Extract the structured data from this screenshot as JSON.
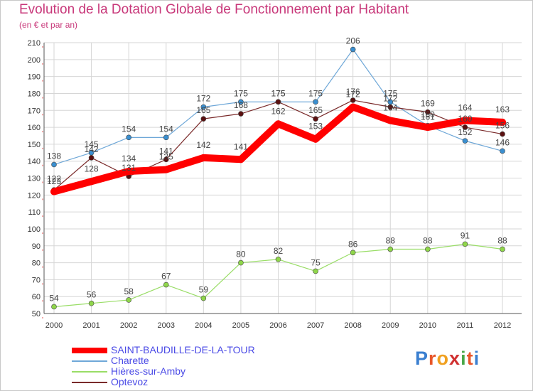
{
  "chart_data": {
    "type": "line",
    "title": "Evolution de la Dotation Globale de Fonctionnement par Habitant",
    "subtitle": "(en € et par an)",
    "x": [
      "2000",
      "2001",
      "2002",
      "2003",
      "2004",
      "2005",
      "2006",
      "2007",
      "2008",
      "2009",
      "2010",
      "2011",
      "2012"
    ],
    "ylim": [
      50,
      210
    ],
    "yticks": [
      50,
      60,
      70,
      80,
      90,
      100,
      110,
      120,
      130,
      140,
      150,
      160,
      170,
      180,
      190,
      200,
      210
    ],
    "grid": true,
    "legend_position": "bottom-left",
    "series": [
      {
        "name": "SAINT-BAUDILLE-DE-LA-TOUR",
        "color": "#ff0000",
        "values": [
          122,
          128,
          134,
          135,
          142,
          141,
          162,
          153,
          172,
          164,
          160,
          164,
          163
        ]
      },
      {
        "name": "Charette",
        "color": "#6fa8d8",
        "values": [
          138,
          145,
          154,
          154,
          172,
          175,
          175,
          175,
          206,
          175,
          161,
          152,
          146
        ]
      },
      {
        "name": "Hières-sur-Amby",
        "color": "#99dd66",
        "values": [
          54,
          56,
          58,
          67,
          59,
          80,
          82,
          75,
          86,
          88,
          88,
          91,
          88
        ]
      },
      {
        "name": "Optevoz",
        "color": "#7a2a2a",
        "values": [
          123,
          142,
          131,
          141,
          165,
          168,
          175,
          165,
          176,
          172,
          169,
          160,
          156
        ]
      }
    ]
  },
  "logo": {
    "letters": [
      "P",
      "r",
      "o",
      "x",
      "i",
      "t",
      "i"
    ]
  }
}
